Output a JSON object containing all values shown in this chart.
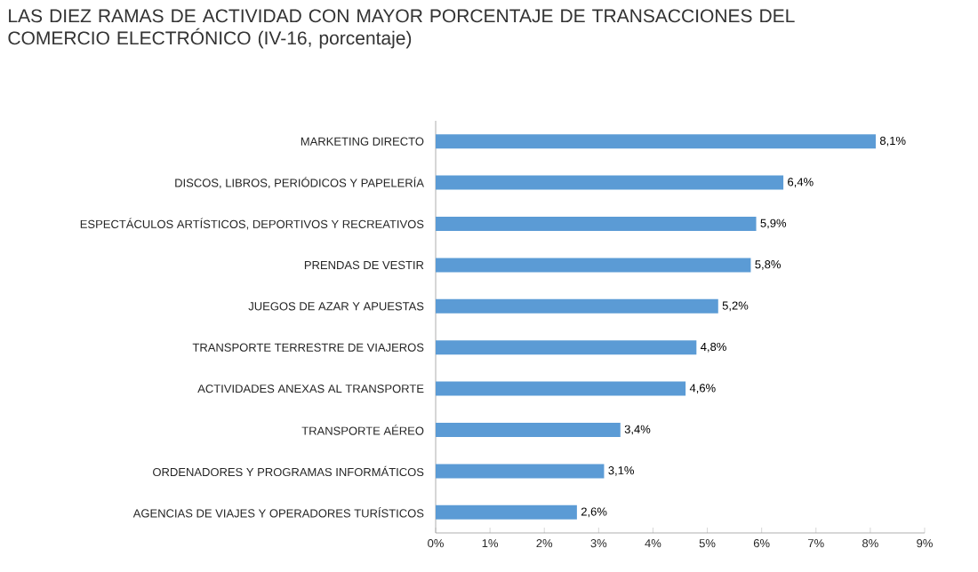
{
  "chart_data": {
    "type": "bar",
    "orientation": "horizontal",
    "title": "LAS DIEZ RAMAS DE ACTIVIDAD CON MAYOR PORCENTAJE DE TRANSACCIONES DEL COMERCIO ELECTRÓNICO (IV-16, porcentaje)",
    "categories": [
      "MARKETING DIRECTO",
      "DISCOS, LIBROS, PERIÓDICOS Y PAPELERÍA",
      "ESPECTÁCULOS ARTÍSTICOS, DEPORTIVOS Y RECREATIVOS",
      "PRENDAS DE VESTIR",
      "JUEGOS DE AZAR Y APUESTAS",
      "TRANSPORTE TERRESTRE DE VIAJEROS",
      "ACTIVIDADES ANEXAS AL TRANSPORTE",
      "TRANSPORTE AÉREO",
      "ORDENADORES Y PROGRAMAS INFORMÁTICOS",
      "AGENCIAS DE VIAJES Y OPERADORES TURÍSTICOS"
    ],
    "values": [
      8.1,
      6.4,
      5.9,
      5.8,
      5.2,
      4.8,
      4.6,
      3.4,
      3.1,
      2.6
    ],
    "value_labels": [
      "8,1%",
      "6,4%",
      "5,9%",
      "5,8%",
      "5,2%",
      "4,8%",
      "4,6%",
      "3,4%",
      "3,1%",
      "2,6%"
    ],
    "color": "#5b9bd5",
    "xlim": [
      0,
      9
    ],
    "xticks": [
      {
        "value": 0,
        "label": "0%"
      },
      {
        "value": 1,
        "label": "1%"
      },
      {
        "value": 2,
        "label": "2%"
      },
      {
        "value": 3,
        "label": "3%"
      },
      {
        "value": 4,
        "label": "4%"
      },
      {
        "value": 5,
        "label": "5%"
      },
      {
        "value": 6,
        "label": "6%"
      },
      {
        "value": 7,
        "label": "7%"
      },
      {
        "value": 8,
        "label": "8%"
      },
      {
        "value": 9,
        "label": "9%"
      }
    ],
    "grid": false
  }
}
